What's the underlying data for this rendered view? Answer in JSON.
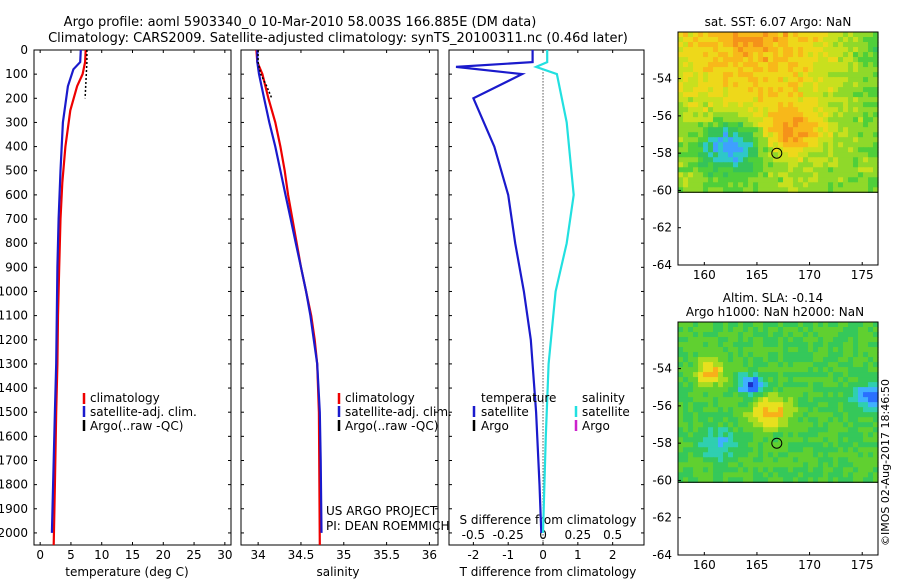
{
  "header": {
    "title_line1": "Argo profile: aoml 5903340_0 10-Mar-2010 58.003S 166.885E (DM data)",
    "title_line2": "Climatology: CARS2009. Satellite-adjusted climatology: synTS_20100311.nc (0.46d later)"
  },
  "watermark": "©IMOS 02-Aug-2017 18:46:50",
  "depth_ticks": [
    "0",
    "100",
    "200",
    "300",
    "400",
    "500",
    "600",
    "700",
    "800",
    "900",
    "1000",
    "1100",
    "1200",
    "1300",
    "1400",
    "1500",
    "1600",
    "1700",
    "1800",
    "1900",
    "2000"
  ],
  "colors": {
    "climatology": "#ee0000",
    "satellite": "#1a1acc",
    "argo": "#000000",
    "cyan": "#22e0e0",
    "magenta": "#cc22cc"
  },
  "chart_data": [
    {
      "type": "line",
      "xlabel": "temperature (deg C)",
      "xlim": [
        -1,
        31
      ],
      "ylim": [
        2050,
        0
      ],
      "xticks": [
        "0",
        "5",
        "10",
        "15",
        "20",
        "25",
        "30"
      ],
      "xtick_values": [
        0,
        5,
        10,
        15,
        20,
        25,
        30
      ],
      "legend": [
        "climatology",
        "satellite-adj. clim.",
        "Argo(..raw -QC)"
      ],
      "series": [
        {
          "name": "climatology",
          "color": "#ee0000",
          "x": [
            7.4,
            7.3,
            6.9,
            6.0,
            4.9,
            4.1,
            3.6,
            3.3,
            3.1,
            2.9,
            2.8,
            2.6,
            2.4,
            2.2
          ],
          "y": [
            0,
            50,
            100,
            150,
            250,
            400,
            550,
            700,
            900,
            1100,
            1300,
            1500,
            1800,
            2050
          ]
        },
        {
          "name": "satellite-adj. clim.",
          "color": "#1a1acc",
          "x": [
            6.6,
            6.5,
            5.4,
            4.5,
            3.7,
            3.3,
            3.0,
            2.8,
            2.7,
            2.6,
            2.4,
            2.2,
            2.0,
            1.9
          ],
          "y": [
            0,
            50,
            80,
            150,
            300,
            500,
            700,
            900,
            1100,
            1300,
            1500,
            1700,
            1900,
            2000
          ]
        },
        {
          "name": "Argo(..raw -QC)",
          "color": "#000000",
          "dashed": true,
          "x": [
            7.6,
            7.6,
            7.5,
            7.4,
            7.3
          ],
          "y": [
            0,
            50,
            100,
            150,
            200
          ]
        }
      ]
    },
    {
      "type": "line",
      "xlabel": "salinity",
      "xlim": [
        33.8,
        36.1
      ],
      "ylim": [
        2050,
        0
      ],
      "xticks": [
        "34",
        "34.5",
        "35",
        "35.5",
        "36"
      ],
      "xtick_values": [
        34,
        34.5,
        35,
        35.5,
        36
      ],
      "legend": [
        "climatology",
        "satellite-adj. clim.",
        "Argo(..raw -QC)"
      ],
      "annotation": [
        "US ARGO PROJECT",
        "PI: DEAN ROEMMICH"
      ],
      "series": [
        {
          "name": "climatology",
          "color": "#ee0000",
          "x": [
            33.98,
            33.99,
            34.05,
            34.12,
            34.2,
            34.26,
            34.31,
            34.35,
            34.4,
            34.45,
            34.5,
            34.56,
            34.62,
            34.66,
            34.69,
            34.71,
            34.72
          ],
          "y": [
            0,
            50,
            100,
            200,
            300,
            400,
            500,
            600,
            700,
            800,
            900,
            1000,
            1100,
            1200,
            1300,
            1500,
            2050
          ]
        },
        {
          "name": "satellite-adj. clim.",
          "color": "#1a1acc",
          "x": [
            33.99,
            33.99,
            34.01,
            34.07,
            34.13,
            34.2,
            34.26,
            34.32,
            34.38,
            34.44,
            34.5,
            34.56,
            34.61,
            34.65,
            34.69,
            34.72,
            34.73,
            34.74
          ],
          "y": [
            0,
            50,
            100,
            200,
            300,
            400,
            500,
            600,
            700,
            800,
            900,
            1000,
            1100,
            1200,
            1300,
            1500,
            1700,
            2000
          ]
        },
        {
          "name": "Argo(..raw -QC)",
          "color": "#000000",
          "dashed": true,
          "x": [
            34.0,
            34.0,
            34.03,
            34.1,
            34.16
          ],
          "y": [
            0,
            50,
            100,
            150,
            200
          ]
        }
      ]
    },
    {
      "type": "line",
      "xlabel": "T difference from climatology",
      "top_xlabel": "S difference from climatology",
      "xlim": [
        -2.7,
        2.9
      ],
      "ylim": [
        2050,
        0
      ],
      "xticks": [
        "-2",
        "-1",
        "0",
        "1",
        "2"
      ],
      "xtick_values": [
        -2,
        -1,
        0,
        1,
        2
      ],
      "top_xticks": [
        "-0.5",
        "-0.25",
        "0",
        "0.25",
        "0.5"
      ],
      "top_xtick_values": [
        -0.5,
        -0.25,
        0,
        0.25,
        0.5
      ],
      "legend_left": {
        "title": "temperature",
        "items": [
          "satellite",
          "Argo"
        ]
      },
      "legend_right": {
        "title": "salinity",
        "items": [
          "satellite",
          "Argo"
        ]
      },
      "series": [
        {
          "name": "satellite",
          "group": "temperature",
          "color": "#1a1acc",
          "x": [
            -0.3,
            -0.3,
            -2.5,
            -0.6,
            -2.0,
            -1.4,
            -1.0,
            -0.8,
            -0.55,
            -0.35,
            -0.2,
            -0.1,
            -0.05
          ],
          "y": [
            0,
            50,
            70,
            100,
            200,
            400,
            600,
            800,
            1000,
            1200,
            1500,
            1800,
            2000
          ]
        },
        {
          "name": "satellite",
          "group": "salinity",
          "color": "#22e0e0",
          "x": [
            0.03,
            0.03,
            -0.05,
            0.1,
            0.17,
            0.22,
            0.17,
            0.09,
            0.04,
            0.02,
            0.0
          ],
          "y": [
            0,
            50,
            70,
            100,
            300,
            600,
            800,
            1000,
            1300,
            1600,
            2000
          ]
        }
      ]
    },
    {
      "type": "heatmap",
      "title": "sat. SST: 6.07  Argo: NaN",
      "xticks": [
        "160",
        "165",
        "170",
        "175"
      ],
      "yticks": [
        "-54",
        "-56",
        "-58",
        "-60",
        "-62",
        "-64"
      ],
      "xlim": [
        157.5,
        176.5
      ],
      "ylim": [
        -64,
        -51.5
      ],
      "data_ylim": [
        -60.1,
        -51.5
      ],
      "marker": {
        "lon": 166.885,
        "lat": -58.003
      }
    },
    {
      "type": "heatmap",
      "title": "Altim. SLA: -0.14",
      "subtitle": "Argo h1000: NaN  h2000: NaN",
      "xticks": [
        "160",
        "165",
        "170",
        "175"
      ],
      "yticks": [
        "-54",
        "-56",
        "-58",
        "-60",
        "-62",
        "-64"
      ],
      "xlim": [
        157.5,
        176.5
      ],
      "ylim": [
        -64,
        -51.5
      ],
      "data_ylim": [
        -60.1,
        -51.5
      ],
      "marker": {
        "lon": 166.885,
        "lat": -58.003
      }
    }
  ]
}
